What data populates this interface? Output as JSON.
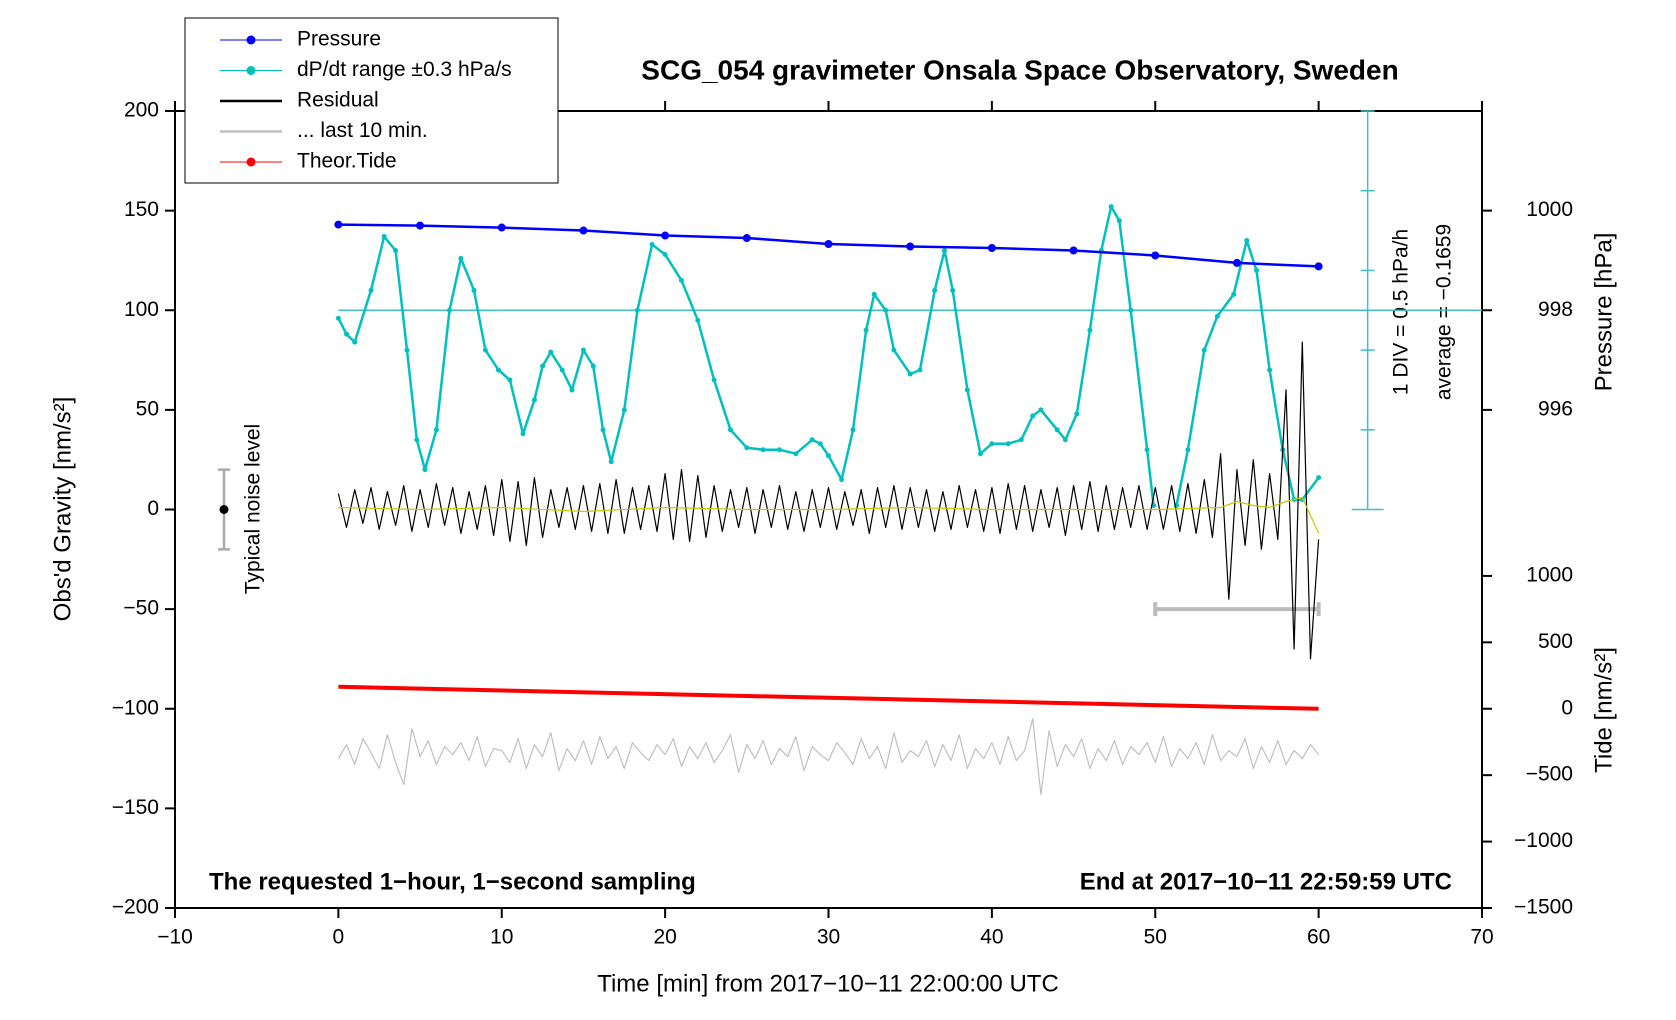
{
  "chart_data": {
    "type": "line",
    "title": "SCG_054 gravimeter Onsala Space Observatory, Sweden",
    "x_label": "Time [min] from 2017−10−11 22:00:00 UTC",
    "y_label": "Obs'd Gravity [nm/s²]",
    "y2_label": "Pressure [hPa]",
    "y3_label": "Tide [nm/s²]",
    "annotations": {
      "left": "The requested 1−hour, 1−second sampling",
      "right": "End at 2017−10−11 22:59:59 UTC",
      "div": "1 DIV = 0.5 hPa/h",
      "average": "average = −0.1659",
      "noise": "Typical noise level"
    },
    "xlim": [
      -10,
      70
    ],
    "xticks": [
      {
        "value": -10,
        "label": "−10"
      },
      0,
      10,
      20,
      30,
      40,
      50,
      60,
      70
    ],
    "ylim": [
      -200,
      200
    ],
    "yticks": [
      {
        "value": -200,
        "label": "−200"
      },
      {
        "value": -150,
        "label": "−150"
      },
      {
        "value": -100,
        "label": "−100"
      },
      {
        "value": -50,
        "label": "−50"
      },
      0,
      50,
      100,
      150,
      200
    ],
    "y2lim": [
      986,
      1002
    ],
    "y2ticks": [
      996,
      998,
      1000
    ],
    "y3lim": [
      -1500,
      4500
    ],
    "y3ticks": [
      {
        "value": -1500,
        "label": "−1500"
      },
      {
        "value": -1000,
        "label": "−1000"
      },
      {
        "value": -500,
        "label": "−500"
      },
      0,
      500,
      1000
    ],
    "dpdt_scale": {
      "x": 63,
      "ylim": [
        0,
        200
      ],
      "ticks": [
        0,
        40,
        80,
        120,
        160,
        200
      ],
      "center": 100
    },
    "noise_level": {
      "x": -7,
      "y": 0,
      "error": 20
    },
    "last10_bar": {
      "x": [
        50,
        60
      ],
      "y": -50
    },
    "legend": "upper left",
    "x": [
      0,
      0.5,
      1,
      1.5,
      2,
      2.5,
      3,
      3.5,
      4,
      4.5,
      5,
      5.5,
      6,
      6.5,
      7,
      7.5,
      8,
      8.5,
      9,
      9.5,
      10,
      10.5,
      11,
      11.5,
      12,
      12.5,
      13,
      13.5,
      14,
      14.5,
      15,
      15.5,
      16,
      16.5,
      17,
      17.5,
      18,
      18.5,
      19,
      19.5,
      20,
      20.5,
      21,
      21.5,
      22,
      22.5,
      23,
      23.5,
      24,
      24.5,
      25,
      25.5,
      26,
      26.5,
      27,
      27.5,
      28,
      28.5,
      29,
      29.5,
      30,
      30.5,
      31,
      31.5,
      32,
      32.5,
      33,
      33.5,
      34,
      34.5,
      35,
      35.5,
      36,
      36.5,
      37,
      37.5,
      38,
      38.5,
      39,
      39.5,
      40,
      40.5,
      41,
      41.5,
      42,
      42.5,
      43,
      43.5,
      44,
      44.5,
      45,
      45.5,
      46,
      46.5,
      47,
      47.5,
      48,
      48.5,
      49,
      49.5,
      50,
      50.5,
      51,
      51.5,
      52,
      52.5,
      53,
      53.5,
      54,
      54.5,
      55,
      55.5,
      56,
      56.5,
      57,
      57.5,
      58,
      58.5,
      59,
      59.5,
      60
    ],
    "series": [
      {
        "name": "Pressure",
        "color": "#0000ff",
        "axis": "y2",
        "style": "dots",
        "x": [
          0,
          5,
          10,
          15,
          20,
          25,
          30,
          35,
          40,
          45,
          50,
          55,
          60
        ],
        "values": [
          999.72,
          999.7,
          999.66,
          999.6,
          999.5,
          999.45,
          999.33,
          999.28,
          999.25,
          999.2,
          999.1,
          998.95,
          998.88
        ]
      },
      {
        "name": "dP/dt range ±0.3 hPa/s",
        "color": "#00c0c0",
        "style": "dots",
        "x": [
          0,
          0.5,
          1,
          2,
          2.8,
          3.5,
          4.2,
          4.8,
          5.3,
          6,
          6.8,
          7.5,
          8.3,
          9,
          9.8,
          10.5,
          11.3,
          12,
          12.5,
          13,
          13.7,
          14.3,
          15,
          15.6,
          16.2,
          16.7,
          17.5,
          18.3,
          19.2,
          20,
          21,
          22,
          23,
          24,
          25,
          26,
          27,
          28,
          29,
          29.5,
          30,
          30.8,
          31.5,
          32.3,
          32.8,
          33.5,
          34,
          35,
          35.6,
          36.5,
          37.1,
          37.6,
          38.5,
          39.3,
          40,
          41,
          41.8,
          42.5,
          43,
          44,
          44.5,
          45.2,
          46,
          46.7,
          47.3,
          47.8,
          48.5,
          49.5,
          49.9,
          50.6,
          51.3,
          52,
          53,
          53.8,
          54.8,
          55.6,
          56.2,
          57,
          57.8,
          58.5,
          59,
          60
        ],
        "values": [
          96,
          88,
          84,
          110,
          137,
          130,
          80,
          35,
          20,
          40,
          100,
          126,
          110,
          80,
          70,
          65,
          38,
          55,
          72,
          79,
          70,
          60,
          80,
          72,
          40,
          24,
          50,
          100,
          133,
          128,
          115,
          95,
          65,
          40,
          31,
          30,
          30,
          28,
          35,
          33,
          27,
          15,
          40,
          90,
          108,
          100,
          80,
          68,
          70,
          110,
          130,
          110,
          60,
          28,
          33,
          33,
          35,
          47,
          50,
          40,
          35,
          48,
          90,
          130,
          152,
          145,
          100,
          30,
          2,
          null,
          2,
          30,
          80,
          97,
          108,
          135,
          120,
          70,
          30,
          5,
          5,
          16
        ]
      },
      {
        "name": "Residual",
        "color": "#000000",
        "style": "line",
        "values": [
          8,
          -9,
          10,
          -7,
          11,
          -10,
          9,
          -8,
          12,
          -11,
          10,
          -9,
          13,
          -8,
          11,
          -12,
          9,
          -10,
          12,
          -13,
          15,
          -16,
          14,
          -18,
          16,
          -14,
          10,
          -9,
          11,
          -10,
          12,
          -11,
          13,
          -12,
          15,
          -12,
          11,
          -10,
          12,
          -11,
          18,
          -15,
          20,
          -16,
          17,
          -14,
          12,
          -11,
          10,
          -9,
          11,
          -12,
          10,
          -9,
          12,
          -10,
          9,
          -11,
          10,
          -9,
          11,
          -10,
          9,
          -8,
          10,
          -12,
          11,
          -9,
          12,
          -10,
          11,
          -9,
          10,
          -11,
          9,
          -10,
          12,
          -9,
          10,
          -11,
          11,
          -12,
          13,
          -10,
          12,
          -11,
          10,
          -9,
          11,
          -13,
          12,
          -10,
          14,
          -11,
          12,
          -10,
          11,
          -9,
          12,
          -10,
          11,
          -10,
          12,
          -11,
          13,
          -12,
          15,
          -14,
          28,
          -45,
          20,
          -18,
          25,
          -20,
          18,
          -15,
          60,
          -70,
          84,
          -75,
          -15
        ]
      },
      {
        "name": "... last 10 min.",
        "color": "#c0c0c0",
        "style": "line",
        "values": [
          -125,
          -118,
          -128,
          -115,
          -122,
          -130,
          -113,
          -127,
          -138,
          -110,
          -124,
          -116,
          -128,
          -119,
          -123,
          -117,
          -126,
          -114,
          -129,
          -120,
          -121,
          -127,
          -115,
          -130,
          -118,
          -124,
          -112,
          -131,
          -120,
          -126,
          -116,
          -128,
          -114,
          -125,
          -119,
          -130,
          -117,
          -122,
          -126,
          -118,
          -123,
          -115,
          -129,
          -119,
          -125,
          -117,
          -127,
          -121,
          -113,
          -132,
          -118,
          -125,
          -116,
          -128,
          -120,
          -124,
          -114,
          -131,
          -119,
          -123,
          -126,
          -117,
          -122,
          -128,
          -115,
          -125,
          -119,
          -130,
          -112,
          -127,
          -121,
          -124,
          -116,
          -129,
          -118,
          -126,
          -113,
          -130,
          -120,
          -125,
          -117,
          -128,
          -114,
          -126,
          -121,
          -105,
          -143,
          -111,
          -129,
          -118,
          -124,
          -115,
          -130,
          -120,
          -126,
          -116,
          -128,
          -119,
          -123,
          -117,
          -127,
          -114,
          -129,
          -120,
          -125,
          -117,
          -128,
          -113,
          -126,
          -121,
          -124,
          -115,
          -130,
          -119,
          -127,
          -116,
          -128,
          -121,
          -125,
          -118,
          -123
        ]
      },
      {
        "name": "Theor.Tide",
        "color": "#ff0000",
        "axis": "y3",
        "style": "thick",
        "x": [
          0,
          60
        ],
        "values": [
          165,
          0
        ]
      },
      {
        "color": "#c8c800",
        "style": "line",
        "x": [
          0,
          5,
          10,
          15,
          20,
          25,
          30,
          35,
          40,
          45,
          50,
          54,
          55,
          56,
          57,
          58,
          59,
          60
        ],
        "values": [
          1,
          0,
          1,
          -1,
          1,
          0,
          0,
          1,
          0,
          0,
          0,
          1,
          4,
          2,
          1,
          4,
          6,
          -12
        ]
      }
    ]
  }
}
